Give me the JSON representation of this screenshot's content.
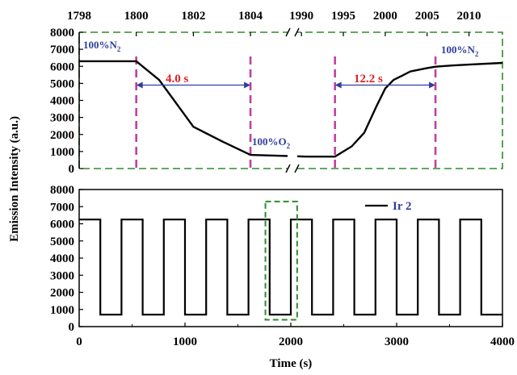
{
  "colors": {
    "line": "#000000",
    "dash_box": "#2e8b2e",
    "marker": "#c040a0",
    "arrow": "#2f3e9e",
    "label_blue": "#2f3e9e",
    "label_red": "#e02020"
  },
  "ylabel": "Emission Intensity (a.u.)",
  "xlabel": "Time (s)",
  "chart_data": [
    {
      "type": "line",
      "name": "top-zoom",
      "broken_axis": true,
      "x_left_ticks": [
        1798,
        1800,
        1802,
        1804
      ],
      "x_right_ticks": [
        1990,
        1995,
        2000,
        2005,
        2010
      ],
      "xlim_left": [
        1798,
        1805.3
      ],
      "xlim_right": [
        1989.5,
        2014
      ],
      "ylim": [
        0,
        8000
      ],
      "y_ticks": [
        0,
        1000,
        2000,
        3000,
        4000,
        5000,
        6000,
        7000,
        8000
      ],
      "series_left": {
        "x": [
          1798,
          1800,
          1800.8,
          1801.5,
          1802,
          1803,
          1804,
          1805.3
        ],
        "y": [
          6300,
          6300,
          5200,
          3600,
          2450,
          1600,
          800,
          740
        ]
      },
      "series_right": {
        "x": [
          1989.5,
          1990.5,
          1994,
          1996,
          1997.5,
          1999,
          2000,
          2001,
          2002,
          2003,
          2005,
          2006,
          2008,
          2010,
          2014
        ],
        "y": [
          720,
          700,
          700,
          1300,
          2100,
          3700,
          4700,
          5200,
          5450,
          5700,
          5900,
          5980,
          6050,
          6100,
          6200
        ]
      },
      "markers_left": [
        1800,
        1804
      ],
      "markers_right": [
        1994,
        2006
      ],
      "annotations": {
        "n2_left": "100%N",
        "n2_right": "100%N",
        "n2_sub": "2",
        "o2": "100%O",
        "o2_sub": "2",
        "resp_time": "4.0 s",
        "recov_time": "12.2 s"
      }
    },
    {
      "type": "line",
      "name": "bottom-cycles",
      "legend": "Ir 2",
      "xlim": [
        0,
        4000
      ],
      "ylim": [
        0,
        8000
      ],
      "x_ticks": [
        0,
        1000,
        2000,
        3000,
        4000
      ],
      "y_ticks": [
        0,
        1000,
        2000,
        3000,
        4000,
        5000,
        6000,
        7000,
        8000
      ],
      "high": 6250,
      "low": 700,
      "start": 0,
      "high_first_end": 200,
      "period": 400,
      "low_duration": 200,
      "cycles": 10,
      "dashed_box_x": [
        1760,
        2060
      ]
    }
  ]
}
